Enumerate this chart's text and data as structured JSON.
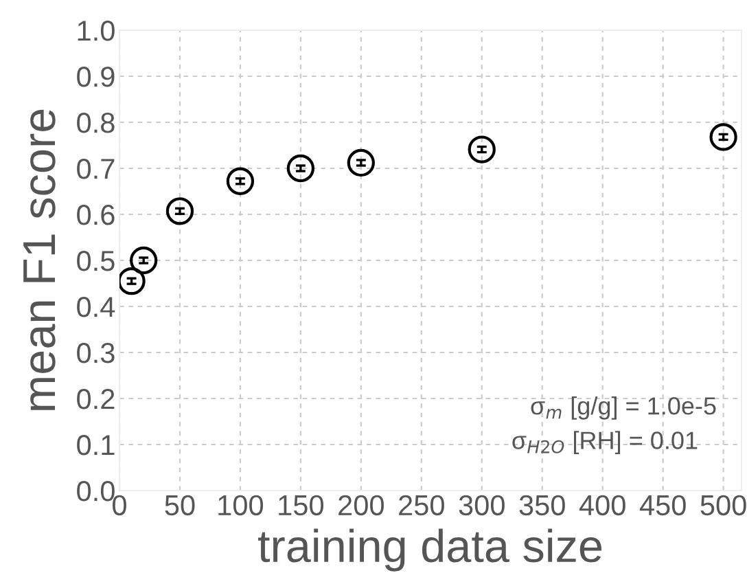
{
  "chart_data": {
    "type": "scatter",
    "xlabel": "training data size",
    "ylabel": "mean F1 score",
    "x": [
      10,
      20,
      50,
      100,
      150,
      200,
      300,
      500
    ],
    "values": [
      0.455,
      0.5,
      0.607,
      0.672,
      0.7,
      0.712,
      0.741,
      0.768
    ],
    "errors": [
      0.006,
      0.006,
      0.006,
      0.006,
      0.006,
      0.006,
      0.006,
      0.006
    ],
    "color": "#000000",
    "marker": "circle",
    "xlim": [
      0,
      515
    ],
    "xticks": [
      0,
      50,
      100,
      150,
      200,
      250,
      300,
      350,
      400,
      450,
      500
    ],
    "ylim": [
      0,
      1
    ],
    "yticks": [
      {
        "value": 0,
        "label": "0.0"
      },
      0.1,
      0.2,
      0.3,
      0.4,
      0.5,
      0.6,
      0.7,
      0.8,
      0.9,
      {
        "value": 1,
        "label": "1.0"
      }
    ],
    "grid": true,
    "annotations": [
      "σ$_{m}$ [g/g] = 1.0e-5",
      "σ$_{H2O}$ [RH] = 0.01"
    ]
  }
}
